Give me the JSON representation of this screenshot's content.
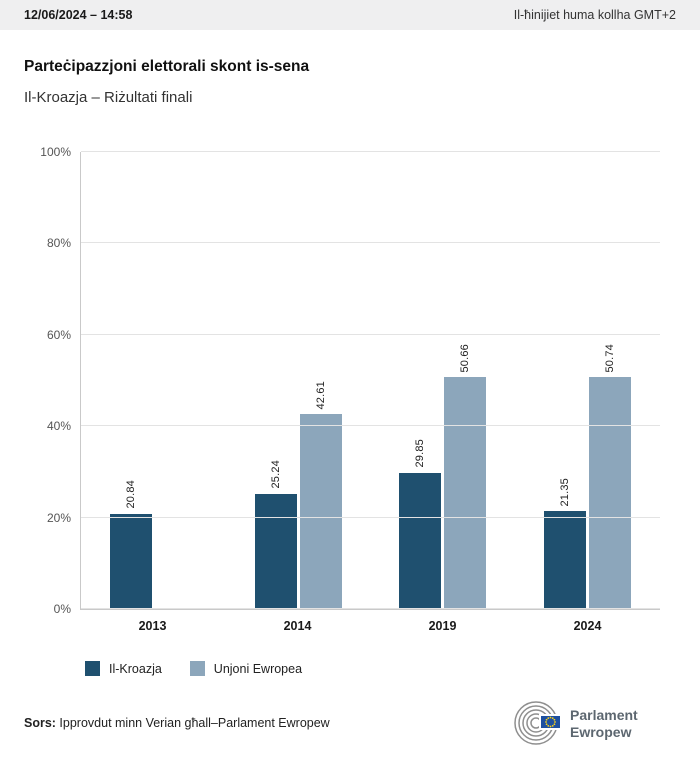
{
  "header": {
    "datetime": "12/06/2024 – 14:58",
    "timezone_note": "Il-ħinijiet huma kollha GMT+2"
  },
  "title": "Parteċipazzjoni elettorali skont is-sena",
  "subtitle": "Il-Kroazja – Riżultati finali",
  "chart_data": {
    "type": "bar",
    "categories": [
      "2013",
      "2014",
      "2019",
      "2024"
    ],
    "series": [
      {
        "name": "Il-Kroazja",
        "color": "#1f506f",
        "values": [
          20.84,
          25.24,
          29.85,
          21.35
        ]
      },
      {
        "name": "Unjoni Ewropea",
        "color": "#8ca6bb",
        "values": [
          null,
          42.61,
          50.66,
          50.74
        ]
      }
    ],
    "title": "Parteċipazzjoni elettorali skont is-sena",
    "xlabel": "",
    "ylabel": "",
    "ylim": [
      0,
      100
    ],
    "yticks": [
      "0%",
      "20%",
      "40%",
      "60%",
      "80%",
      "100%"
    ],
    "grid": true,
    "legend_position": "bottom",
    "bar_value_labels_rotated": true
  },
  "legend": [
    {
      "label": "Il-Kroazja",
      "color": "#1f506f"
    },
    {
      "label": "Unjoni Ewropea",
      "color": "#8ca6bb"
    }
  ],
  "footer": {
    "source_label": "Sors:",
    "source_text": " Ipprovdut minn Verian għall–Parlament Ewropew"
  },
  "logo": {
    "line1": "Parlament",
    "line2": "Ewropew",
    "arc_color": "#8f8f8f",
    "flag_blue": "#1e50a0",
    "star_yellow": "#ffd617",
    "text_color": "#5d6770"
  }
}
